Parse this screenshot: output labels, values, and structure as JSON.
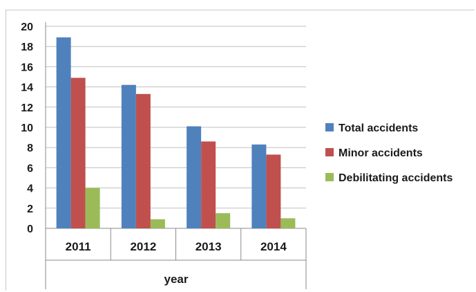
{
  "chart_data": {
    "type": "bar",
    "categories": [
      "2011",
      "2012",
      "2013",
      "2014"
    ],
    "series": [
      {
        "name": "Total accidents",
        "values": [
          18.9,
          14.2,
          10.1,
          8.3
        ],
        "color": "#4f81bd"
      },
      {
        "name": "Minor accidents",
        "values": [
          14.9,
          13.3,
          8.6,
          7.3
        ],
        "color": "#c0504d"
      },
      {
        "name": "Debilitating accidents",
        "values": [
          4.0,
          0.9,
          1.5,
          1.0
        ],
        "color": "#9bbb59"
      }
    ],
    "title": "",
    "xlabel": "year",
    "ylabel": "",
    "ylim": [
      0,
      20
    ],
    "yticks": [
      "0",
      "2",
      "4",
      "6",
      "8",
      "10",
      "12",
      "14",
      "16",
      "18",
      "20"
    ],
    "grid": true,
    "legend": "right"
  }
}
